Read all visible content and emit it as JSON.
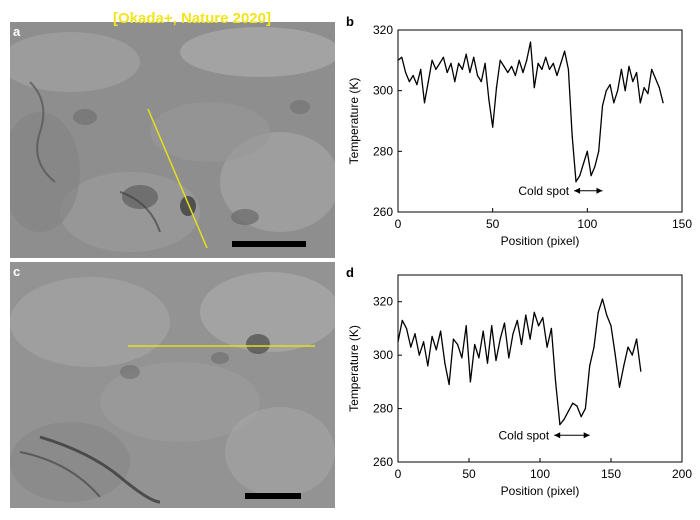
{
  "citation": "[Okada+, Nature 2020]",
  "panels": {
    "a": "a",
    "b": "b",
    "c": "c",
    "d": "d"
  },
  "colors": {
    "profile_line": "#e5e01a",
    "citation_text": "#f2e51a",
    "curve": "#000000"
  },
  "chart_data": [
    {
      "type": "line",
      "panel": "b",
      "xlabel": "Position (pixel)",
      "ylabel": "Temperature (K)",
      "xlim": [
        0,
        150
      ],
      "ylim": [
        260,
        320
      ],
      "xticks": [
        0,
        50,
        100,
        150
      ],
      "yticks": [
        260,
        280,
        300,
        320
      ],
      "annotation": "Cold spot",
      "annotation_range": [
        93,
        108
      ],
      "annotation_y": 267,
      "series": [
        {
          "x": [
            0,
            2,
            4,
            6,
            8,
            10,
            12,
            14,
            16,
            18,
            20,
            22,
            24,
            26,
            28,
            30,
            32,
            34,
            36,
            38,
            40,
            42,
            44,
            46,
            48,
            50,
            52,
            54,
            56,
            58,
            60,
            62,
            64,
            66,
            68,
            70,
            72,
            74,
            76,
            78,
            80,
            82,
            84,
            86,
            88,
            90,
            92,
            94,
            96,
            98,
            100,
            102,
            104,
            106,
            108,
            110,
            112,
            114,
            116,
            118,
            120,
            122,
            124,
            126,
            128,
            130,
            132,
            134,
            136,
            138,
            140
          ],
          "y": [
            310,
            311,
            306,
            303,
            305,
            302,
            307,
            296,
            303,
            310,
            307,
            309,
            311,
            306,
            309,
            303,
            309,
            307,
            312,
            306,
            311,
            305,
            303,
            309,
            297,
            288,
            301,
            310,
            308,
            306,
            308,
            305,
            310,
            306,
            310,
            316,
            301,
            309,
            307,
            311,
            307,
            309,
            305,
            309,
            313,
            307,
            285,
            270,
            272,
            276,
            280,
            272,
            275,
            280,
            295,
            300,
            302,
            296,
            300,
            307,
            300,
            308,
            303,
            306,
            296,
            301,
            299,
            307,
            304,
            301,
            296
          ]
        }
      ]
    },
    {
      "type": "line",
      "panel": "d",
      "xlabel": "Position (pixel)",
      "ylabel": "Temperature (K)",
      "xlim": [
        0,
        200
      ],
      "ylim": [
        260,
        330
      ],
      "xticks": [
        0,
        50,
        100,
        150,
        200
      ],
      "yticks": [
        260,
        280,
        300,
        320
      ],
      "annotation": "Cold spot",
      "annotation_range": [
        110,
        135
      ],
      "annotation_y": 270,
      "series": [
        {
          "x": [
            0,
            3,
            6,
            9,
            12,
            15,
            18,
            21,
            24,
            27,
            30,
            33,
            36,
            39,
            42,
            45,
            48,
            51,
            54,
            57,
            60,
            63,
            66,
            69,
            72,
            75,
            78,
            81,
            84,
            87,
            90,
            93,
            96,
            99,
            102,
            105,
            108,
            111,
            114,
            117,
            120,
            123,
            126,
            129,
            132,
            135,
            138,
            141,
            144,
            147,
            150,
            153,
            156,
            159,
            162,
            165,
            168,
            171
          ],
          "y": [
            305,
            313,
            310,
            303,
            308,
            300,
            305,
            296,
            307,
            302,
            309,
            297,
            289,
            306,
            304,
            299,
            311,
            290,
            304,
            299,
            309,
            297,
            311,
            298,
            306,
            312,
            299,
            308,
            313,
            304,
            315,
            306,
            316,
            311,
            314,
            303,
            310,
            290,
            274,
            276,
            279,
            282,
            281,
            277,
            280,
            296,
            303,
            316,
            321,
            315,
            311,
            300,
            288,
            296,
            303,
            300,
            306,
            294
          ]
        }
      ]
    }
  ]
}
